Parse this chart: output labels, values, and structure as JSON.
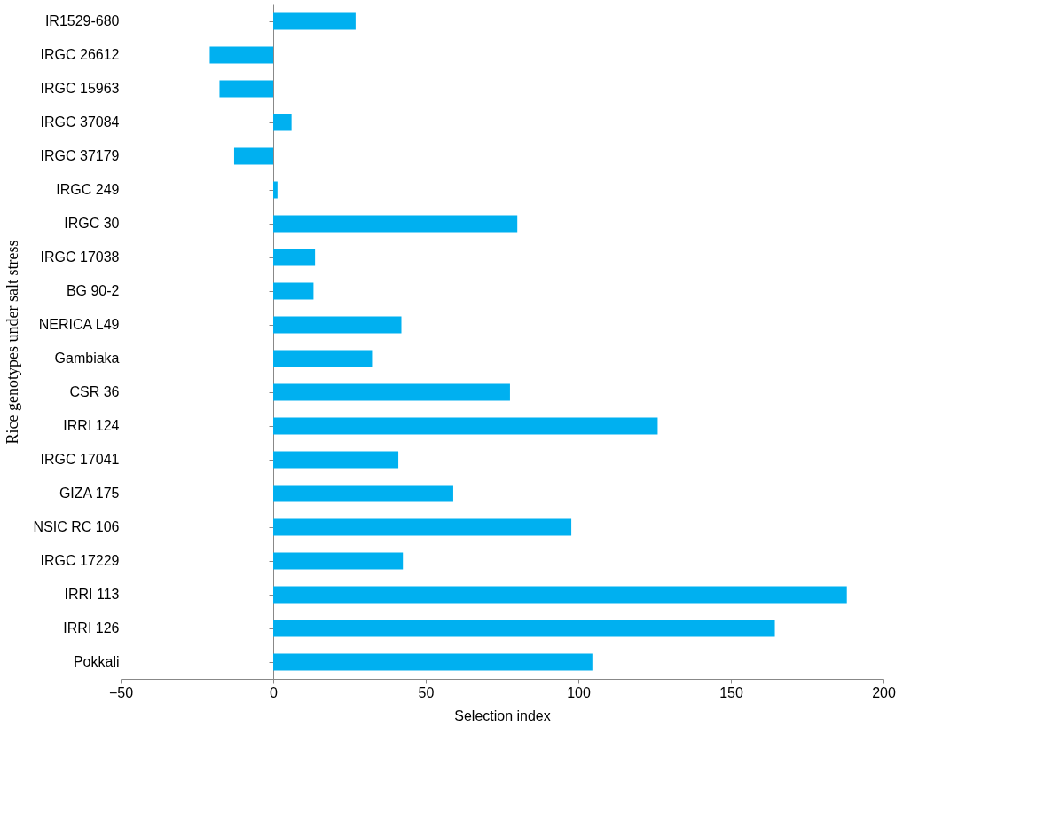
{
  "chart_data": {
    "type": "bar",
    "orientation": "horizontal",
    "xlabel": "Selection index",
    "ylabel": "Rice genotypes under salt stress",
    "categories": [
      "IR1529-680",
      "IRGC 26612",
      "IRGC 15963",
      "IRGC 37084",
      "IRGC 37179",
      "IRGC 249",
      "IRGC 30",
      "IRGC 17038",
      "BG 90-2",
      "NERICA L49",
      "Gambiaka",
      "CSR 36",
      "IRRI 124",
      "IRGC 17041",
      "GIZA 175",
      "NSIC RC 106",
      "IRGC 17229",
      "IRRI 113",
      "IRRI 126",
      "Pokkali"
    ],
    "values": [
      27,
      -20.8,
      -17.6,
      6,
      -12.8,
      1.4,
      80,
      13.7,
      13.2,
      42,
      32.4,
      77.6,
      126,
      41,
      59,
      97.7,
      42.5,
      188,
      164.4,
      104.6
    ],
    "color": "#00b0f0",
    "xlim": [
      -50,
      200
    ],
    "xticks": [
      -50,
      0,
      50,
      100,
      150,
      200
    ]
  }
}
